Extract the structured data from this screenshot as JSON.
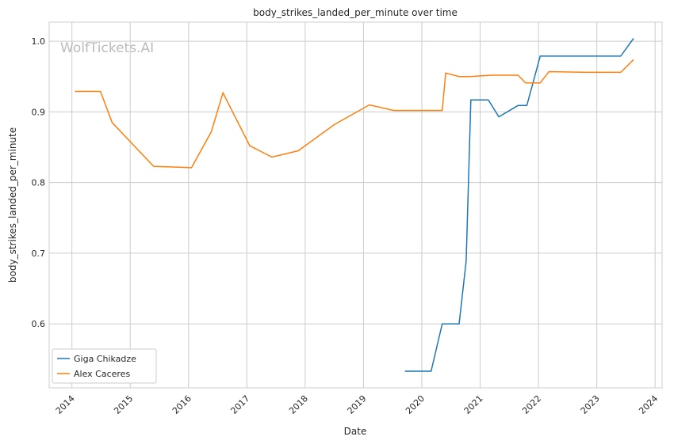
{
  "chart_data": {
    "type": "line",
    "title": "body_strikes_landed_per_minute over time",
    "xlabel": "Date",
    "ylabel": "body_strikes_landed_per_minute",
    "watermark": "WolfTickets.AI",
    "xlim": [
      2013.61,
      2024.12
    ],
    "ylim": [
      0.5095,
      1.027
    ],
    "x_ticks": [
      "2014",
      "2015",
      "2016",
      "2017",
      "2018",
      "2019",
      "2020",
      "2021",
      "2022",
      "2023",
      "2024"
    ],
    "y_ticks": [
      "0.6",
      "0.7",
      "0.8",
      "0.9",
      "1.0"
    ],
    "grid": true,
    "legend_position": "lower-left",
    "series": [
      {
        "name": "Giga Chikadze",
        "color": "#1f77b4",
        "x": [
          2019.71,
          2020.16,
          2020.35,
          2020.64,
          2020.76,
          2020.84,
          2021.14,
          2021.32,
          2021.65,
          2021.8,
          2022.03,
          2023.41,
          2023.63
        ],
        "y": [
          0.533,
          0.533,
          0.6,
          0.6,
          0.689,
          0.917,
          0.917,
          0.893,
          0.909,
          0.909,
          0.979,
          0.979,
          1.004
        ]
      },
      {
        "name": "Alex Caceres",
        "color": "#ff7f0e",
        "x": [
          2014.05,
          2014.49,
          2014.69,
          2015.4,
          2016.05,
          2016.39,
          2016.59,
          2017.05,
          2017.43,
          2017.88,
          2018.5,
          2019.1,
          2019.52,
          2020.35,
          2020.41,
          2020.64,
          2020.82,
          2021.2,
          2021.65,
          2021.78,
          2022.03,
          2022.18,
          2022.83,
          2023.41,
          2023.63
        ],
        "y": [
          0.929,
          0.929,
          0.885,
          0.823,
          0.821,
          0.872,
          0.927,
          0.852,
          0.836,
          0.845,
          0.882,
          0.91,
          0.902,
          0.902,
          0.955,
          0.95,
          0.95,
          0.952,
          0.952,
          0.941,
          0.941,
          0.957,
          0.956,
          0.956,
          0.974
        ]
      }
    ]
  }
}
